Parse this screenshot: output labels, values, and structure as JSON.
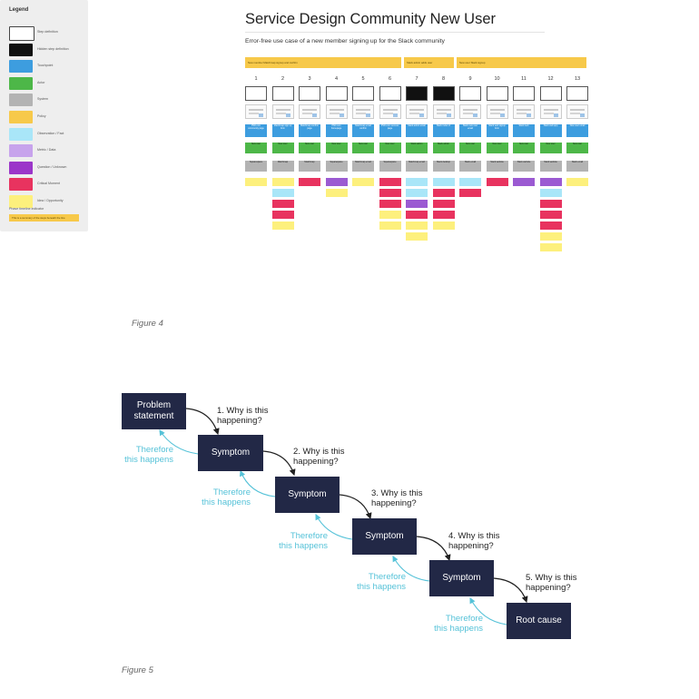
{
  "legend": {
    "title": "Legend",
    "items": [
      {
        "label": "Step definition",
        "color": "#ffffff"
      },
      {
        "label": "Hidden step definition",
        "color": "#111111"
      },
      {
        "label": "Touchpoint",
        "color": "#3d9ddf"
      },
      {
        "label": "Actor",
        "color": "#4db748"
      },
      {
        "label": "System",
        "color": "#b3b3b3"
      },
      {
        "label": "Policy",
        "color": "#f7c94a"
      },
      {
        "label": "Observation / Fact",
        "color": "#a9e6f8"
      },
      {
        "label": "Metric / Data",
        "color": "#c7a3ec"
      },
      {
        "label": "Question / Unknown",
        "color": "#9b36c9"
      },
      {
        "label": "Critical Moment",
        "color": "#e8335f"
      },
      {
        "label": "Idea / Opportunity",
        "color": "#fdf07d"
      }
    ],
    "phase_label": "Phase timeline indicator",
    "phase_bar_text": "This is a summary of the steps beneath the line"
  },
  "map": {
    "title": "Service Design Community New User",
    "subtitle": "Error-free use case of a new member signing up for the Slack community",
    "phases": [
      "New member Matchmap signup and confirm",
      "Slack admin adds user",
      "New user Slack signup"
    ],
    "columns": [
      {
        "num": "1",
        "touch": "PSD.com community page",
        "actor": "New user",
        "system": "Squarespace"
      },
      {
        "num": "2",
        "touch": "Matchmap sign up form",
        "actor": "New user",
        "system": "Matchmap"
      },
      {
        "num": "3",
        "touch": "Matchmap confirm page",
        "actor": "New user",
        "system": "Matchmap"
      },
      {
        "num": "4",
        "touch": "PSD.com homepage",
        "actor": "New user",
        "system": "Squarespace"
      },
      {
        "num": "5",
        "touch": "Matchmap email confirm",
        "actor": "New user",
        "system": "Matchmap email"
      },
      {
        "num": "6",
        "touch": "PSD.com success page",
        "actor": "New user",
        "system": "Squarespace"
      },
      {
        "num": "7",
        "touch": "Slack admin email",
        "actor": "Slack admin",
        "system": "Matchmap email"
      },
      {
        "num": "8",
        "touch": "Slack invite UI",
        "actor": "Slack admin",
        "system": "Slack desktop"
      },
      {
        "num": "9",
        "touch": "Slack new user email",
        "actor": "New user",
        "system": "Slack email"
      },
      {
        "num": "10",
        "touch": "Slack web signup form",
        "actor": "New user",
        "system": "Slack website"
      },
      {
        "num": "11",
        "touch": "Slack web",
        "actor": "New user",
        "system": "Slack website"
      },
      {
        "num": "12",
        "touch": "Slack web app",
        "actor": "New user",
        "system": "Slack website"
      },
      {
        "num": "13",
        "touch": "New user email",
        "actor": "New user",
        "system": "Slack email"
      }
    ]
  },
  "figure4_caption": "Figure 4",
  "fig5": {
    "problem": "Problem statement",
    "symptom": "Symptom",
    "root": "Root cause",
    "whys": [
      "1. Why is this happening?",
      "2. Why is this happening?",
      "3. Why is this happening?",
      "4. Why is this happening?",
      "5. Why is this happening?"
    ],
    "therefore": "Therefore this happens"
  },
  "figure5_caption": "Figure 5",
  "colors": {
    "node": "#222846",
    "therefore": "#55c2d8",
    "phase": "#f7c94a"
  }
}
